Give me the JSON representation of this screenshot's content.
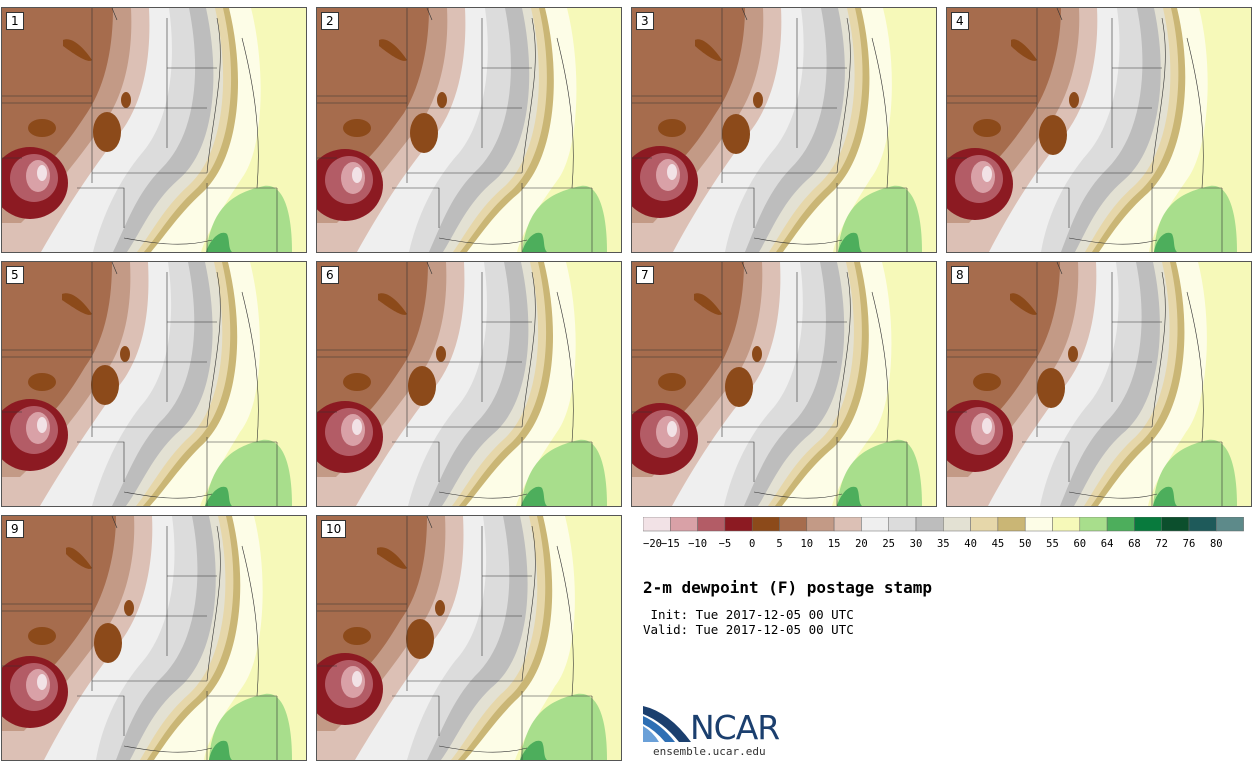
{
  "title": "2-m dewpoint (F) postage stamp",
  "init_text": " Init: Tue 2017-12-05 00 UTC",
  "valid_text": "Valid: Tue 2017-12-05 00 UTC",
  "logo": {
    "word": "NCAR",
    "url": "ensemble.ucar.edu"
  },
  "panels": [
    "1",
    "2",
    "3",
    "4",
    "5",
    "6",
    "7",
    "8",
    "9",
    "10"
  ],
  "colorbar": {
    "colors": [
      "#f2e2e6",
      "#d9a1a7",
      "#b35c66",
      "#8c1a22",
      "#8c4a1a",
      "#a66c4d",
      "#c39a86",
      "#dcc0b5",
      "#efefef",
      "#dcdcdc",
      "#bdbdbd",
      "#e3e1d3",
      "#e6d7aa",
      "#cab675",
      "#fdfde7",
      "#f6f9b9",
      "#a8de8c",
      "#4dae5c",
      "#087a3d",
      "#0c4f2d",
      "#1e5a5a",
      "#5d8a8a"
    ],
    "labels": [
      "-20",
      "-15",
      "-10",
      "-5",
      "0",
      "5",
      "10",
      "15",
      "20",
      "25",
      "30",
      "35",
      "40",
      "45",
      "50",
      "55",
      "60",
      "64",
      "68",
      "72",
      "76",
      "80"
    ]
  }
}
